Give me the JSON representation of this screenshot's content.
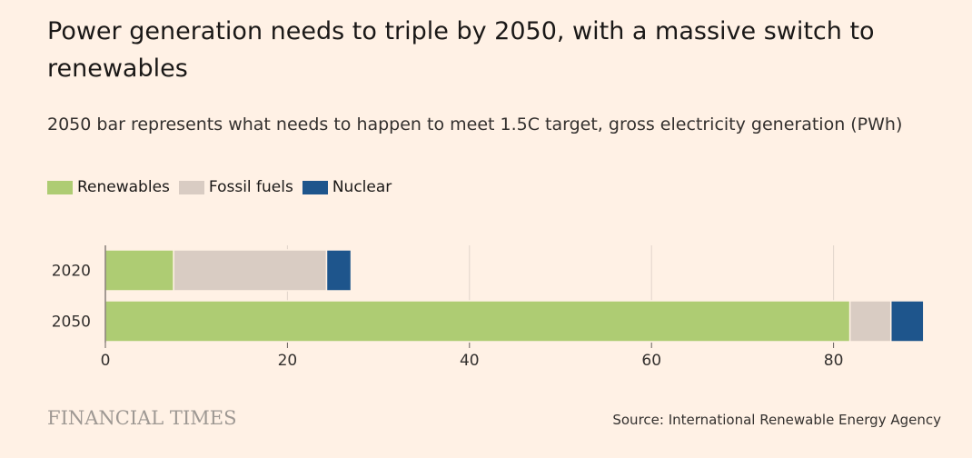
{
  "header": {
    "title": "Power generation needs to triple by 2050, with a massive switch to renewables",
    "subtitle": "2050 bar represents what needs to happen to meet 1.5C target, gross electricity generation (PWh)"
  },
  "legend": [
    {
      "label": "Renewables",
      "color": "#aecc73"
    },
    {
      "label": "Fossil fuels",
      "color": "#d9ccc3"
    },
    {
      "label": "Nuclear",
      "color": "#1e558c"
    }
  ],
  "chart_data": {
    "type": "bar",
    "orientation": "horizontal",
    "stacked": true,
    "title": "Power generation needs to triple by 2050, with a massive switch to renewables",
    "subtitle": "2050 bar represents what needs to happen to meet 1.5C target, gross electricity generation (PWh)",
    "categories": [
      "2020",
      "2050"
    ],
    "series": [
      {
        "name": "Renewables",
        "values": [
          7.5,
          81.8
        ],
        "color": "#aecc73"
      },
      {
        "name": "Fossil fuels",
        "values": [
          16.8,
          4.5
        ],
        "color": "#d9ccc3"
      },
      {
        "name": "Nuclear",
        "values": [
          2.7,
          3.6
        ],
        "color": "#1e558c"
      }
    ],
    "xlim": [
      0,
      90
    ],
    "xticks": [
      0,
      20,
      40,
      60,
      80
    ],
    "xlabel": "",
    "ylabel": "",
    "grid": true,
    "legend_position": "top-left"
  },
  "footer": {
    "brand": "FINANCIAL TIMES",
    "source": "Source: International Renewable Energy Agency"
  }
}
